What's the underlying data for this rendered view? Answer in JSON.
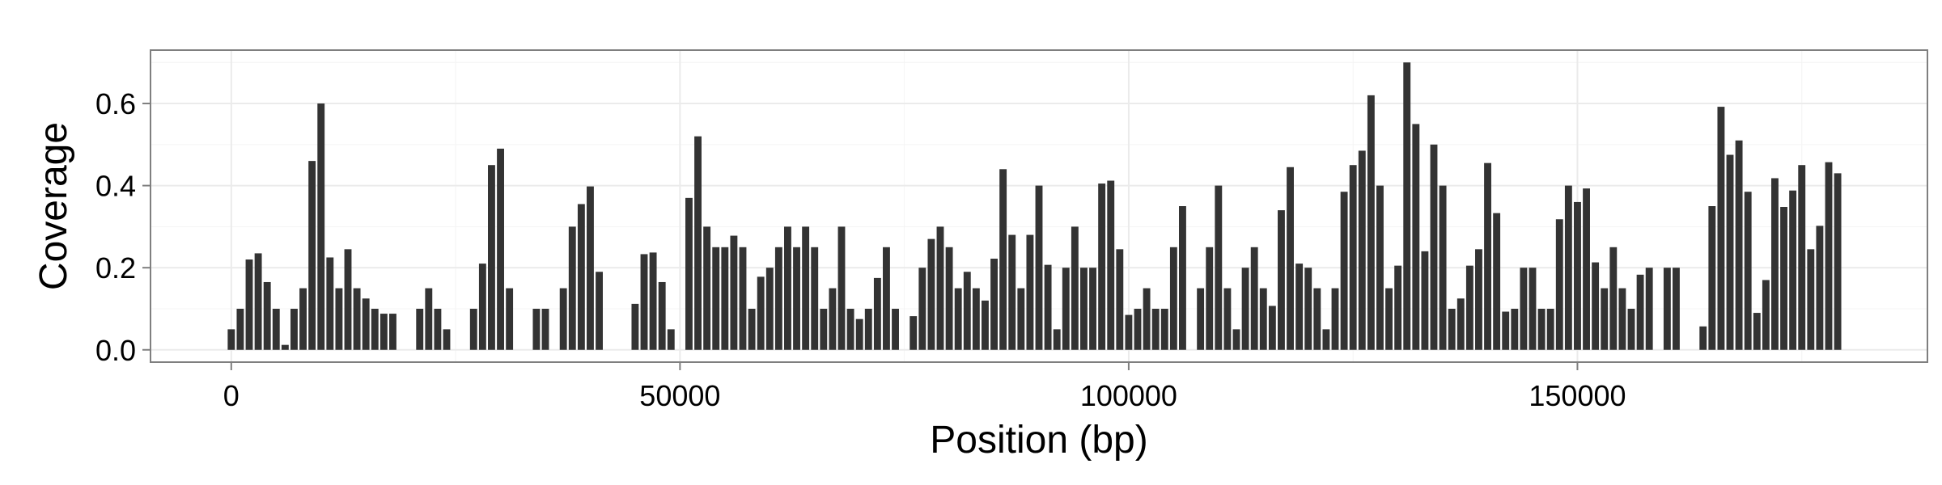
{
  "chart_data": {
    "type": "bar",
    "xlabel": "Position (bp)",
    "ylabel": "Coverage",
    "xlim": [
      -9000,
      189000
    ],
    "ylim": [
      -0.03,
      0.73
    ],
    "x_ticks": [
      0,
      50000,
      100000,
      150000
    ],
    "x_tick_labels": [
      "0",
      "50000",
      "100000",
      "150000"
    ],
    "y_ticks": [
      0.0,
      0.2,
      0.4,
      0.6
    ],
    "y_tick_labels": [
      "0.0",
      "0.2",
      "0.4",
      "0.6"
    ],
    "bar_width": 800,
    "grid": true,
    "bar_color": "#333333",
    "panel_border_color": "#7f7f7f",
    "grid_color": "#ebebeb",
    "x": [
      0,
      1000,
      2000,
      3000,
      4000,
      5000,
      6000,
      7000,
      8000,
      9000,
      10000,
      11000,
      12000,
      13000,
      14000,
      15000,
      16000,
      17000,
      18000,
      21000,
      22000,
      23000,
      24000,
      27000,
      28000,
      29000,
      30000,
      31000,
      34000,
      35000,
      37000,
      38000,
      39000,
      40000,
      41000,
      45000,
      46000,
      47000,
      48000,
      49000,
      51000,
      52000,
      53000,
      54000,
      55000,
      56000,
      57000,
      58000,
      59000,
      60000,
      61000,
      62000,
      63000,
      64000,
      65000,
      66000,
      67000,
      68000,
      69000,
      70000,
      71000,
      72000,
      73000,
      74000,
      76000,
      77000,
      78000,
      79000,
      80000,
      81000,
      82000,
      83000,
      84000,
      85000,
      86000,
      87000,
      88000,
      89000,
      90000,
      91000,
      92000,
      93000,
      94000,
      95000,
      96000,
      97000,
      98000,
      99000,
      100000,
      101000,
      102000,
      103000,
      104000,
      105000,
      106000,
      108000,
      109000,
      110000,
      111000,
      112000,
      113000,
      114000,
      115000,
      116000,
      117000,
      118000,
      119000,
      120000,
      121000,
      122000,
      123000,
      124000,
      125000,
      126000,
      127000,
      128000,
      129000,
      130000,
      131000,
      132000,
      133000,
      134000,
      135000,
      136000,
      137000,
      138000,
      139000,
      140000,
      141000,
      142000,
      143000,
      144000,
      145000,
      146000,
      147000,
      148000,
      149000,
      150000,
      151000,
      152000,
      153000,
      154000,
      155000,
      156000,
      157000,
      158000,
      160000,
      161000,
      164000,
      165000,
      166000,
      167000,
      168000,
      169000,
      170000,
      171000,
      172000,
      173000,
      174000,
      175000,
      176000,
      177000,
      178000,
      179000
    ],
    "values": [
      0.05,
      0.1,
      0.22,
      0.235,
      0.165,
      0.1,
      0.012,
      0.1,
      0.15,
      0.46,
      0.6,
      0.225,
      0.15,
      0.245,
      0.15,
      0.125,
      0.1,
      0.088,
      0.088,
      0.1,
      0.15,
      0.1,
      0.05,
      0.1,
      0.21,
      0.45,
      0.49,
      0.15,
      0.1,
      0.1,
      0.15,
      0.3,
      0.355,
      0.398,
      0.19,
      0.112,
      0.233,
      0.237,
      0.165,
      0.05,
      0.37,
      0.52,
      0.3,
      0.25,
      0.25,
      0.278,
      0.25,
      0.1,
      0.178,
      0.2,
      0.25,
      0.3,
      0.25,
      0.3,
      0.25,
      0.1,
      0.15,
      0.3,
      0.1,
      0.075,
      0.1,
      0.175,
      0.25,
      0.1,
      0.082,
      0.2,
      0.27,
      0.3,
      0.25,
      0.15,
      0.19,
      0.15,
      0.12,
      0.222,
      0.44,
      0.28,
      0.15,
      0.28,
      0.4,
      0.207,
      0.05,
      0.2,
      0.3,
      0.2,
      0.2,
      0.405,
      0.412,
      0.245,
      0.085,
      0.1,
      0.15,
      0.1,
      0.1,
      0.25,
      0.35,
      0.15,
      0.25,
      0.4,
      0.15,
      0.05,
      0.2,
      0.25,
      0.15,
      0.107,
      0.34,
      0.445,
      0.21,
      0.2,
      0.15,
      0.05,
      0.15,
      0.385,
      0.45,
      0.485,
      0.62,
      0.4,
      0.15,
      0.205,
      0.7,
      0.55,
      0.24,
      0.5,
      0.4,
      0.1,
      0.125,
      0.205,
      0.245,
      0.455,
      0.333,
      0.093,
      0.1,
      0.2,
      0.2,
      0.1,
      0.1,
      0.318,
      0.4,
      0.36,
      0.393,
      0.213,
      0.15,
      0.25,
      0.15,
      0.1,
      0.183,
      0.2,
      0.2,
      0.2,
      0.057,
      0.35,
      0.592,
      0.475,
      0.51,
      0.385,
      0.09,
      0.17,
      0.418,
      0.348,
      0.388,
      0.45,
      0.245,
      0.302,
      0.457,
      0.43
    ]
  }
}
